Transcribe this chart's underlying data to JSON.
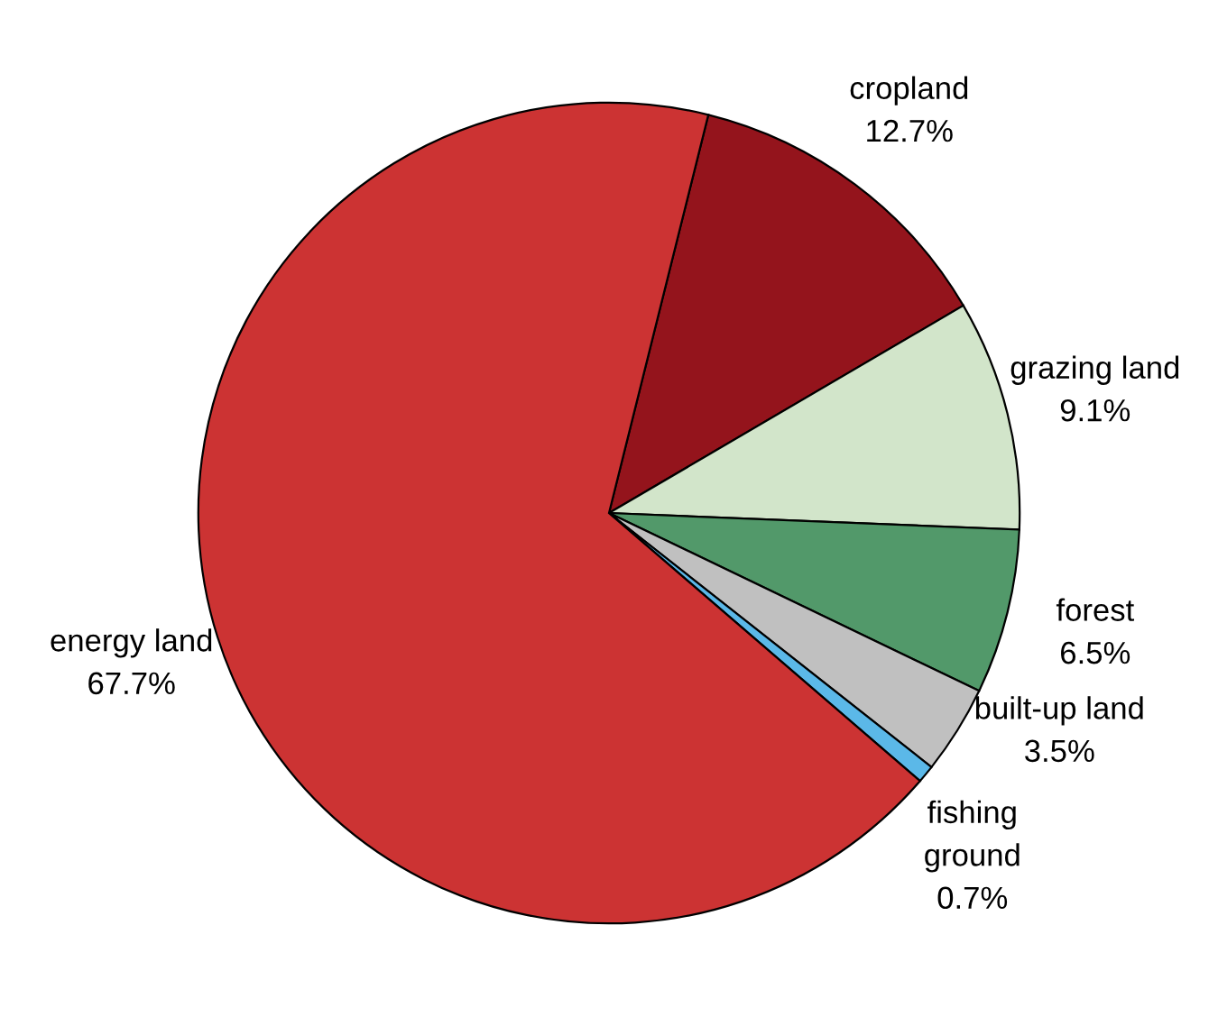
{
  "chart_data": {
    "type": "pie",
    "categories": [
      "cropland",
      "grazing land",
      "forest",
      "built-up land",
      "fishing ground",
      "energy land"
    ],
    "values": [
      12.7,
      9.1,
      6.5,
      3.5,
      0.7,
      67.7
    ],
    "colors": [
      "#94141c",
      "#d2e5ca",
      "#52996a",
      "#c0c0c0",
      "#5bb8e8",
      "#cc3333"
    ],
    "value_labels": [
      "12.7%",
      "9.1%",
      "6.5%",
      "3.5%",
      "0.7%",
      "67.7%"
    ]
  }
}
